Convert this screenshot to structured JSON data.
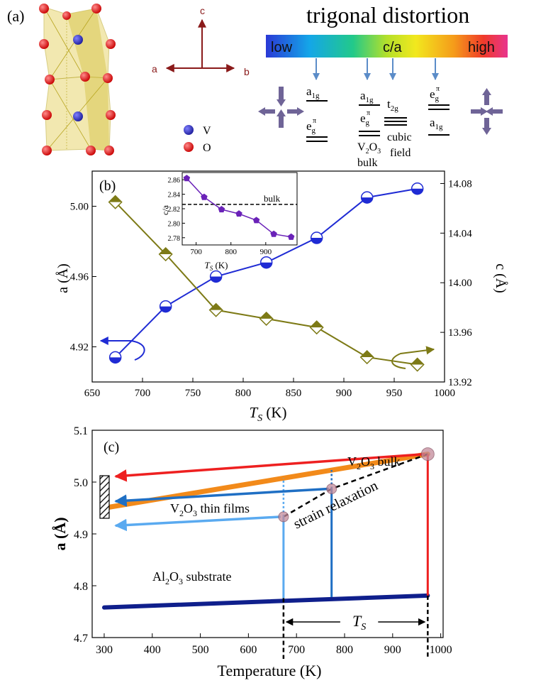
{
  "panel_a": {
    "label": "(a)",
    "axes": {
      "c": "c",
      "a": "a",
      "b": "b"
    },
    "legend": [
      {
        "symbol": "V",
        "color": "#2a2acc"
      },
      {
        "symbol": "O",
        "color": "#e01010"
      }
    ],
    "title": "trigonal distortion",
    "bar_labels": {
      "low": "low",
      "mid": "c/a",
      "high": "high"
    },
    "levels": {
      "left": [
        "a",
        "1g",
        "e",
        "g",
        "π"
      ],
      "bulk": [
        "a",
        "1g",
        "e",
        "g",
        "π",
        "V",
        "2",
        "O",
        "3",
        "bulk"
      ],
      "cubic": [
        "t",
        "2g",
        "cubic",
        "field"
      ],
      "right": [
        "e",
        "g",
        "π",
        "a",
        "1g"
      ]
    },
    "colors": {
      "arrow": "#6f6497",
      "pointer": "#5b8cc8"
    }
  },
  "chart_data": [
    {
      "type": "line",
      "panel": "(b)",
      "xlabel": "T",
      "xlabel_sub": "S",
      "xlabel_unit": " (K)",
      "ylabel_left": "a (Å)",
      "ylabel_right": "c (Å)",
      "xlim": [
        650,
        1000
      ],
      "ylim_left": [
        4.9,
        5.02
      ],
      "ylim_right": [
        13.92,
        14.09
      ],
      "x_ticks": [
        "650",
        "700",
        "750",
        "800",
        "850",
        "900",
        "950",
        "1000"
      ],
      "y_ticks_left": [
        "4.92",
        "4.96",
        "5.00"
      ],
      "y_ticks_right": [
        "13.92",
        "13.96",
        "14.00",
        "14.04",
        "14.08"
      ],
      "series": [
        {
          "name": "a",
          "axis": "left",
          "color": "#1f2bd4",
          "x": [
            673,
            723,
            773,
            823,
            873,
            923,
            973
          ],
          "values": [
            4.914,
            4.943,
            4.96,
            4.968,
            4.982,
            5.005,
            5.01
          ]
        },
        {
          "name": "c",
          "axis": "right",
          "color": "#7d7a16",
          "x": [
            673,
            723,
            773,
            823,
            873,
            923,
            973
          ],
          "values": [
            14.065,
            14.023,
            13.978,
            13.971,
            13.964,
            13.94,
            13.934
          ]
        }
      ],
      "inset": {
        "type": "line",
        "ylabel": "c/a",
        "xlabel": "T",
        "xlabel_sub": "S",
        "xlabel_unit": " (K)",
        "xlim": [
          660,
          990
        ],
        "ylim": [
          2.77,
          2.87
        ],
        "x_ticks": [
          "700",
          "800",
          "900"
        ],
        "y_ticks": [
          "2.78",
          "2.80",
          "2.82",
          "2.84",
          "2.86"
        ],
        "reference_label": "bulk",
        "reference_value": 2.826,
        "color": "#6a22b8",
        "x": [
          673,
          723,
          773,
          823,
          873,
          923,
          973
        ],
        "values": [
          2.862,
          2.836,
          2.819,
          2.813,
          2.804,
          2.785,
          2.781
        ]
      }
    },
    {
      "type": "line",
      "panel": "(c)",
      "xlabel": "Temperature (K)",
      "ylabel": "a (Å)",
      "xlim": [
        275,
        1005
      ],
      "ylim": [
        4.7,
        5.1
      ],
      "x_ticks": [
        "300",
        "400",
        "500",
        "600",
        "700",
        "800",
        "900",
        "1000"
      ],
      "y_ticks": [
        "4.7",
        "4.8",
        "4.9",
        "5.0",
        "5.1"
      ],
      "series": [
        {
          "name": "Al2O3 substrate",
          "color": "#0f1f8c",
          "x": [
            300,
            973
          ],
          "values": [
            4.758,
            4.781
          ]
        },
        {
          "name": "V2O3 bulk",
          "color": "#f28a1a",
          "x": [
            300,
            973
          ],
          "values": [
            4.95,
            5.054
          ]
        },
        {
          "name": "strain relaxation",
          "color": "#000000",
          "dashed": true,
          "x": [
            673,
            773,
            973
          ],
          "values": [
            4.933,
            4.987,
            5.054
          ]
        }
      ],
      "labels": {
        "bulk": [
          "V",
          "2",
          "O",
          "3",
          " bulk"
        ],
        "films": [
          "V",
          "2",
          "O",
          "3",
          " thin films"
        ],
        "strain": "strain  relaxation",
        "substrate": [
          "Al",
          "2",
          "O",
          "3",
          "  substrate"
        ],
        "ts": "T",
        "ts_sub": "S"
      }
    }
  ]
}
